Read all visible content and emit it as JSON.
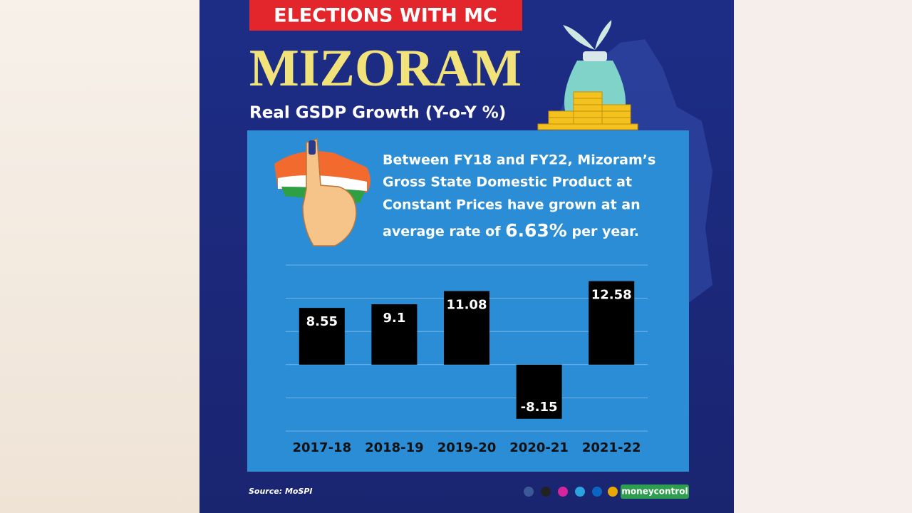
{
  "banner": "ELECTIONS WITH MC",
  "headline": "MIZORAM",
  "description": {
    "lines": [
      "Between FY18 and FY22, Mizoram’s",
      "Gross State Domestic Product at",
      "Constant Prices have grown at an"
    ],
    "last_before": "average rate of",
    "highlight": "6.63%",
    "last_after": "per year."
  },
  "source": "Source: MoSPI",
  "brand": "moneycontrol",
  "chart_data": {
    "type": "bar",
    "title": "Real GSDP Growth (Y-o-Y %)",
    "categories": [
      "2017-18",
      "2018-19",
      "2019-20",
      "2020-21",
      "2021-22"
    ],
    "values": [
      8.55,
      9.1,
      11.08,
      -8.15,
      12.58
    ],
    "color": "#000000",
    "ylim": [
      -10,
      15
    ],
    "yticks": [
      -10,
      -5,
      0,
      5,
      10,
      15
    ],
    "grid": true
  }
}
